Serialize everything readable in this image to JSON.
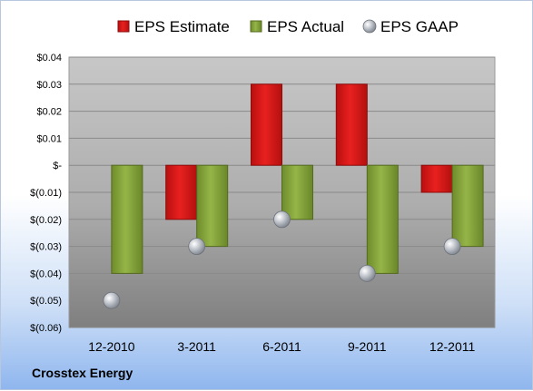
{
  "company": "Crosstex Energy",
  "chart_data": {
    "type": "bar",
    "categories": [
      "12-2010",
      "3-2011",
      "6-2011",
      "9-2011",
      "12-2011"
    ],
    "series": [
      {
        "name": "EPS Estimate",
        "kind": "bar",
        "color": "#e0201e",
        "values": [
          null,
          -0.02,
          0.03,
          0.03,
          -0.01
        ]
      },
      {
        "name": "EPS Actual",
        "kind": "bar",
        "color": "#8fb040",
        "values": [
          -0.04,
          -0.03,
          -0.02,
          -0.04,
          -0.03
        ]
      },
      {
        "name": "EPS GAAP",
        "kind": "marker",
        "color": "#b9bec6",
        "values": [
          -0.05,
          -0.03,
          -0.02,
          -0.04,
          -0.03
        ]
      }
    ],
    "y_ticks": [
      {
        "value": 0.04,
        "label": "$0.04"
      },
      {
        "value": 0.03,
        "label": "$0.03"
      },
      {
        "value": 0.02,
        "label": "$0.02"
      },
      {
        "value": 0.01,
        "label": "$0.01"
      },
      {
        "value": 0,
        "label": "$-"
      },
      {
        "value": -0.01,
        "label": "$(0.01)"
      },
      {
        "value": -0.02,
        "label": "$(0.02)"
      },
      {
        "value": -0.03,
        "label": "$(0.03)"
      },
      {
        "value": -0.04,
        "label": "$(0.04)"
      },
      {
        "value": -0.05,
        "label": "$(0.05)"
      },
      {
        "value": -0.06,
        "label": "$(0.06)"
      }
    ],
    "ylim": [
      -0.06,
      0.04
    ],
    "grid": true,
    "legend_position": "top"
  }
}
